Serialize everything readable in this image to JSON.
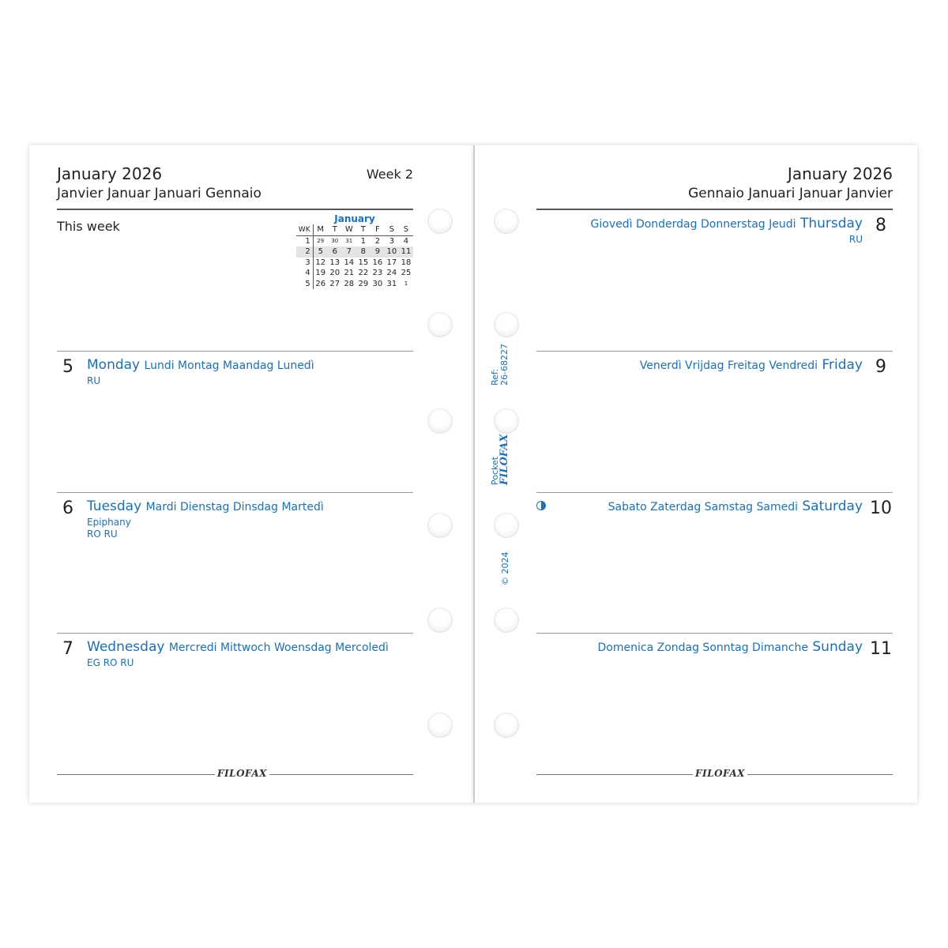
{
  "left": {
    "title": "January 2026",
    "subtitle": "Janvier Januar Januari Gennaio",
    "week": "Week 2",
    "this_week": "This week",
    "mini_calendar": {
      "month": "January",
      "headers": [
        "WK",
        "M",
        "T",
        "W",
        "T",
        "F",
        "S",
        "S"
      ],
      "rows": [
        [
          "1",
          "29",
          "30",
          "31",
          "1",
          "2",
          "3",
          "4"
        ],
        [
          "2",
          "5",
          "6",
          "7",
          "8",
          "9",
          "10",
          "11"
        ],
        [
          "3",
          "12",
          "13",
          "14",
          "15",
          "16",
          "17",
          "18"
        ],
        [
          "4",
          "19",
          "20",
          "21",
          "22",
          "23",
          "24",
          "25"
        ],
        [
          "5",
          "26",
          "27",
          "28",
          "29",
          "30",
          "31",
          "1"
        ]
      ],
      "current_week": "2"
    },
    "days": [
      {
        "num": "5",
        "name": "Monday",
        "others": "Lundi Montag Maandag Lunedì",
        "notes": [
          "RU"
        ]
      },
      {
        "num": "6",
        "name": "Tuesday",
        "others": "Mardi Dienstag Dinsdag Martedì",
        "notes": [
          "Epiphany",
          "RO RU"
        ]
      },
      {
        "num": "7",
        "name": "Wednesday",
        "others": "Mercredi Mittwoch Woensdag Mercoledì",
        "notes": [
          "EG RO RU"
        ]
      }
    ],
    "footer_logo": "filofax"
  },
  "right": {
    "title": "January 2026",
    "subtitle": "Gennaio Januari Januar Janvier",
    "days": [
      {
        "num": "8",
        "others": "Giovedì Donderdag Donnerstag Jeudi",
        "name": "Thursday",
        "notes": [
          "RU"
        ]
      },
      {
        "num": "9",
        "others": "Venerdì Vrijdag Freitag Vendredi",
        "name": "Friday",
        "notes": []
      },
      {
        "num": "10",
        "others": "Sabato Zaterdag Samstag Samedi",
        "name": "Saturday",
        "notes": [],
        "moon": "first-quarter-moon-icon"
      },
      {
        "num": "11",
        "others": "Domenica Zondag Sonntag Dimanche",
        "name": "Sunday",
        "notes": []
      }
    ],
    "footer_logo": "filofax"
  },
  "spine": {
    "ref": "Ref:",
    "code": "26-68227",
    "size": "Pocket",
    "brand": "filofax",
    "copyright": "© 2024"
  },
  "colors": {
    "accent": "#1a6fbf"
  }
}
